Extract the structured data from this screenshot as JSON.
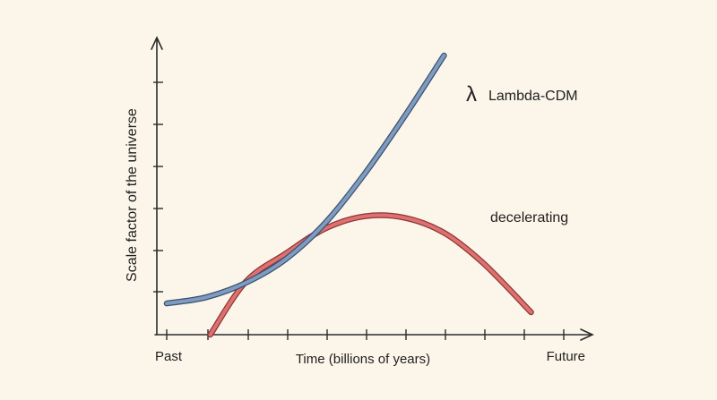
{
  "chart_data": {
    "type": "line",
    "title": "",
    "xlabel": "Time (billions of years)",
    "ylabel": "Scale factor of the universe",
    "x_tick_labels": [
      {
        "x": 0,
        "label": "Past"
      },
      {
        "x": 1,
        "label": "Future"
      }
    ],
    "xlim": [
      0,
      1
    ],
    "ylim": [
      0,
      1
    ],
    "grid": false,
    "legend": "inline labels at line ends",
    "series": [
      {
        "name": "Lambda-CDM",
        "symbol": "λ",
        "color": "#7f9cc0",
        "outline_color": "#3a5170",
        "points": [
          [
            0.0,
            0.112
          ],
          [
            0.1,
            0.134
          ],
          [
            0.2,
            0.186
          ],
          [
            0.3,
            0.27
          ],
          [
            0.4,
            0.4
          ],
          [
            0.5,
            0.577
          ],
          [
            0.6,
            0.781
          ],
          [
            0.7,
            1.0
          ]
        ]
      },
      {
        "name": "decelerating",
        "color": "#e07070",
        "outline_color": "#8a3636",
        "points": [
          [
            0.11,
            0.0
          ],
          [
            0.2,
            0.19
          ],
          [
            0.3,
            0.29
          ],
          [
            0.4,
            0.38
          ],
          [
            0.5,
            0.424
          ],
          [
            0.6,
            0.419
          ],
          [
            0.7,
            0.365
          ],
          [
            0.8,
            0.255
          ],
          [
            0.92,
            0.08
          ]
        ]
      }
    ]
  }
}
